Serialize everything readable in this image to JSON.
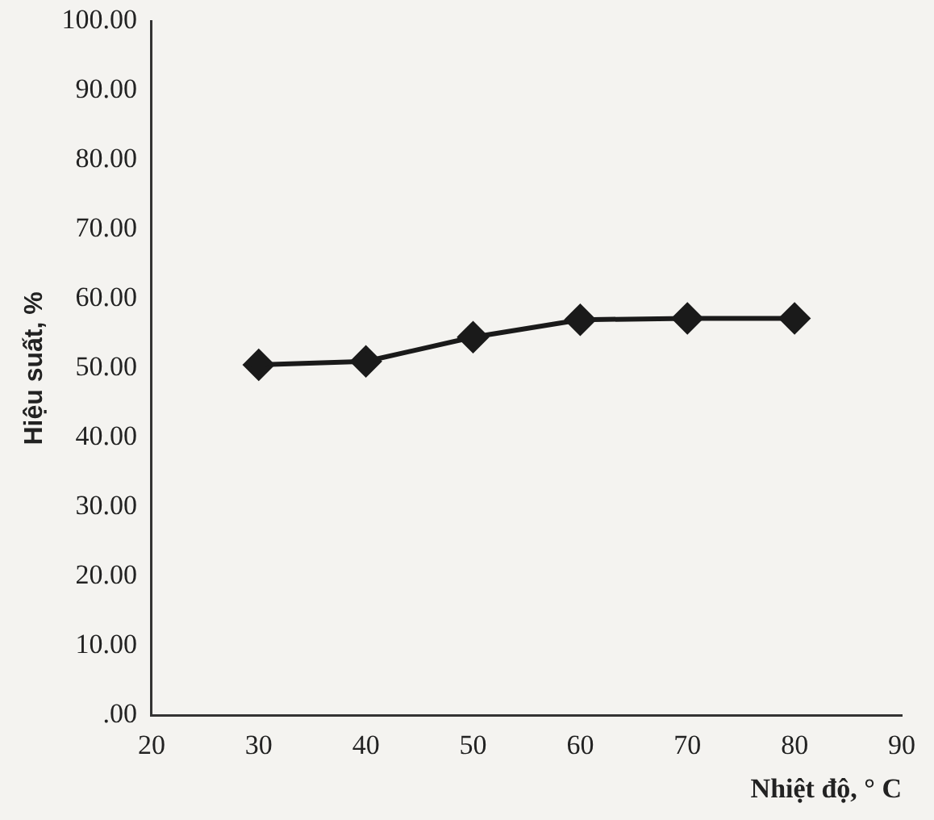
{
  "chart_data": {
    "type": "line",
    "xlabel": "Nhiệt độ, ° C",
    "ylabel": "Hiệu suất, %",
    "x": [
      30,
      40,
      50,
      60,
      70,
      80
    ],
    "series": [
      {
        "color": "#1a1a1a",
        "values": [
          50.5,
          51,
          54.5,
          57,
          57.2,
          57.2
        ]
      }
    ],
    "xlim": [
      20,
      90
    ],
    "xticks": [
      20,
      30,
      40,
      50,
      60,
      70,
      80,
      90
    ],
    "ylim": [
      0,
      100
    ],
    "yticks": [
      {
        "value": 0,
        "label": ".00"
      },
      {
        "value": 10,
        "label": "10.00"
      },
      {
        "value": 20,
        "label": "20.00"
      },
      {
        "value": 30,
        "label": "30.00"
      },
      {
        "value": 40,
        "label": "40.00"
      },
      {
        "value": 50,
        "label": "50.00"
      },
      {
        "value": 60,
        "label": "60.00"
      },
      {
        "value": 70,
        "label": "70.00"
      },
      {
        "value": 80,
        "label": "80.00"
      },
      {
        "value": 90,
        "label": "90.00"
      },
      {
        "value": 100,
        "label": "100.00"
      }
    ],
    "grid": false,
    "legend": false,
    "marker": "diamond",
    "line_style": "solid"
  }
}
